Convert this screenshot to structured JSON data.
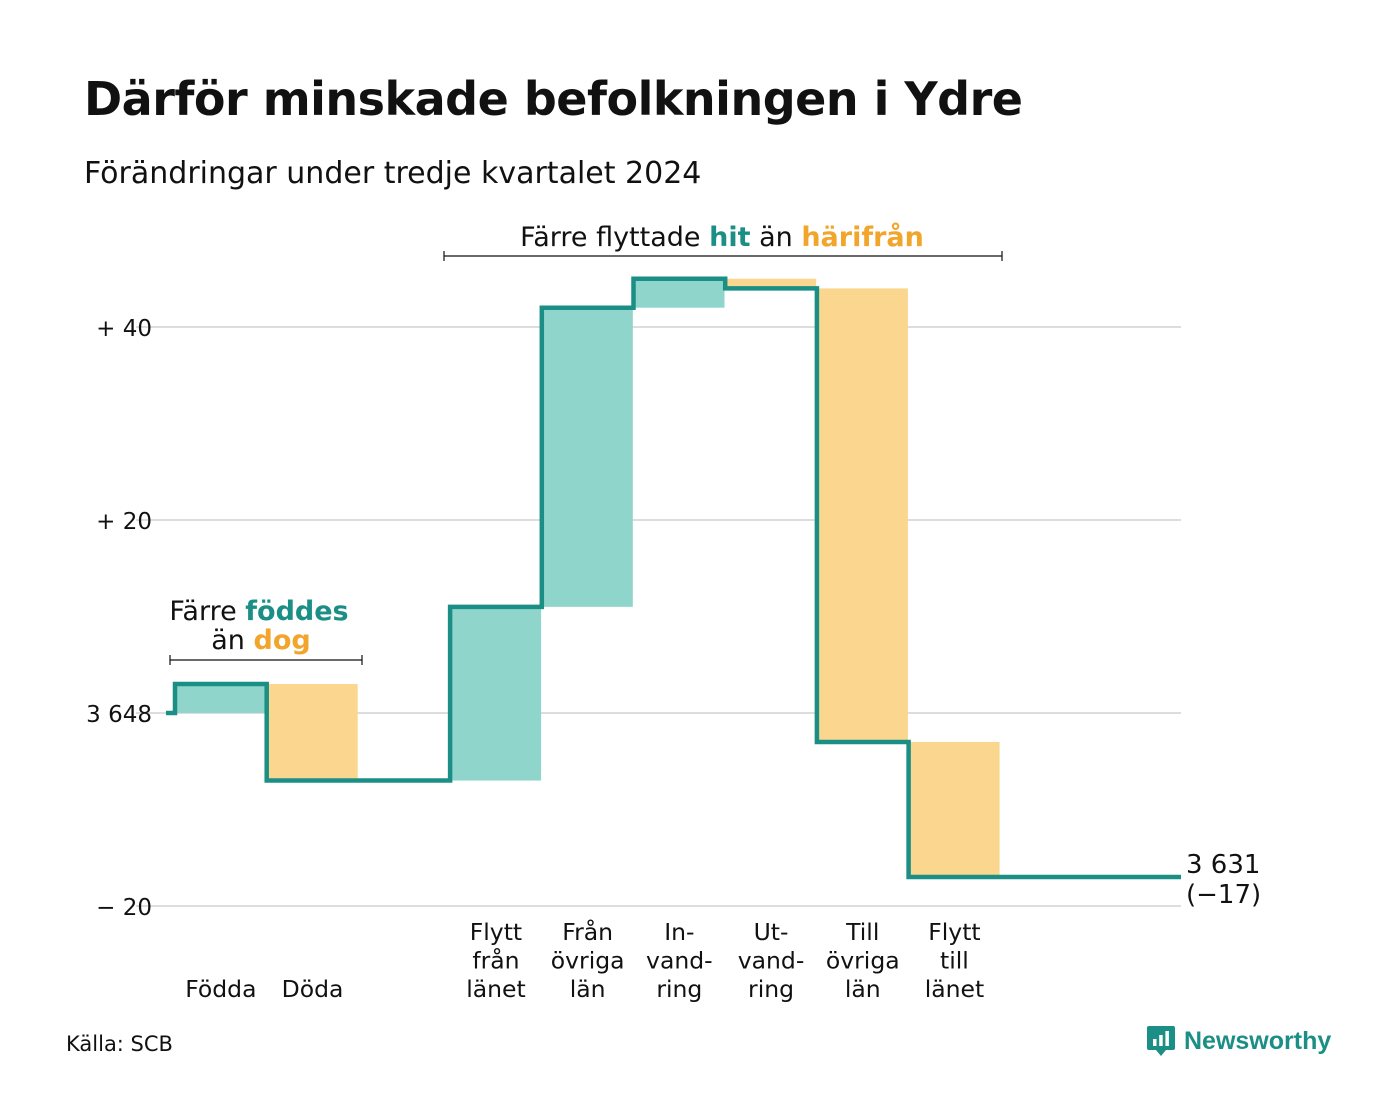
{
  "title": "Därför minskade befolkningen i Ydre",
  "subtitle": "Förändringar under tredje kvartalet 2024",
  "source": "Källa: SCB",
  "brand": "Newsworthy",
  "colors": {
    "increase": "#8fd5cb",
    "decrease": "#fad68e",
    "line": "#1b8f85",
    "hit": "#1b8f85",
    "harifran": "#f1a52b",
    "grid": "#dddddd"
  },
  "annotations": {
    "births": {
      "line1_prefix": "Färre ",
      "line1_highlight": "föddes",
      "line2_prefix": "än ",
      "line2_highlight": "dog"
    },
    "migration": {
      "prefix": "Färre flyttade ",
      "highlight1": "hit",
      "middle": " än ",
      "highlight2": "härifrån"
    }
  },
  "end_label": {
    "value": "3 631",
    "change": "(−17)"
  },
  "chart_data": {
    "type": "waterfall",
    "start_value": 3648,
    "end_value": 3631,
    "yaxis": {
      "ticks": [
        -20,
        0,
        20,
        40
      ],
      "tick_labels": [
        "− 20",
        "3 648",
        "+ 20",
        "+ 40"
      ],
      "ylim": [
        -20,
        45
      ]
    },
    "categories": [
      {
        "label": [
          "Födda"
        ],
        "delta": 3
      },
      {
        "label": [
          "Döda"
        ],
        "delta": -10
      },
      {
        "label": [],
        "delta": 0
      },
      {
        "label": [
          "Flytt",
          "från",
          "länet"
        ],
        "delta": 18
      },
      {
        "label": [
          "Från",
          "övriga",
          "län"
        ],
        "delta": 31
      },
      {
        "label": [
          "In-",
          "vand-",
          "ring"
        ],
        "delta": 3
      },
      {
        "label": [
          "Ut-",
          "vand-",
          "ring"
        ],
        "delta": -1
      },
      {
        "label": [
          "Till",
          "övriga",
          "län"
        ],
        "delta": -47
      },
      {
        "label": [
          "Flytt",
          "till",
          "länet"
        ],
        "delta": -14
      },
      {
        "label": [],
        "delta": 0
      }
    ],
    "grid": true,
    "legend": "none"
  }
}
